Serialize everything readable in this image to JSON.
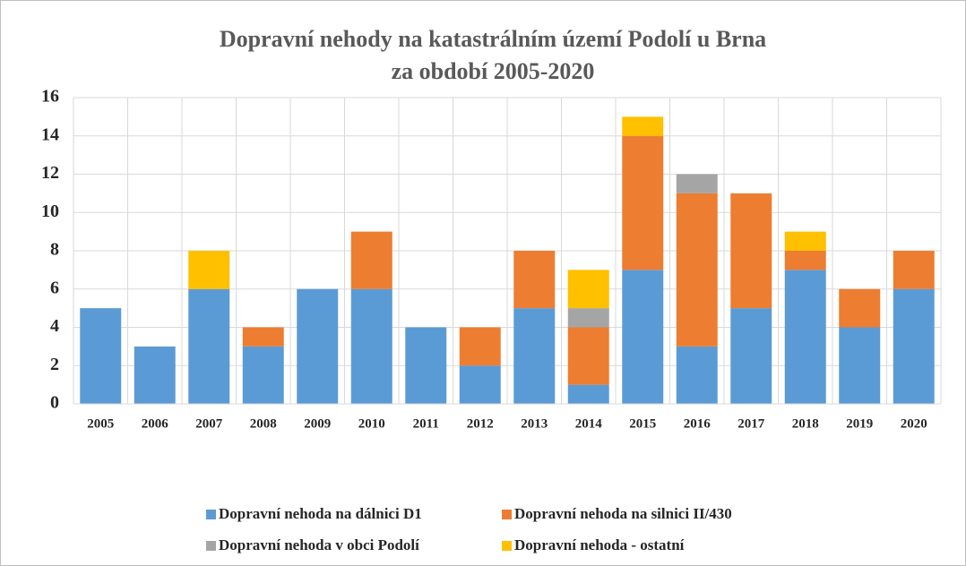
{
  "chart_data": {
    "type": "stacked_bar",
    "title": [
      "Dopravní nehody na katastrálním území Podolí u Brna",
      "za období 2005-2020"
    ],
    "categories": [
      "2005",
      "2006",
      "2007",
      "2008",
      "2009",
      "2010",
      "2011",
      "2012",
      "2013",
      "2014",
      "2015",
      "2016",
      "2017",
      "2018",
      "2019",
      "2020"
    ],
    "series": [
      {
        "name": "Dopravní nehoda na dálnici D1",
        "color": "#5b9bd5",
        "values": [
          5,
          3,
          6,
          3,
          6,
          6,
          4,
          2,
          5,
          1,
          7,
          3,
          5,
          7,
          4,
          6
        ]
      },
      {
        "name": "Dopravní nehoda na silnici II/430",
        "color": "#ed7d31",
        "values": [
          0,
          0,
          0,
          1,
          0,
          3,
          0,
          2,
          3,
          3,
          7,
          8,
          6,
          1,
          2,
          2
        ]
      },
      {
        "name": "Dopravní nehoda v obci Podolí",
        "color": "#a5a5a5",
        "values": [
          0,
          0,
          0,
          0,
          0,
          0,
          0,
          0,
          0,
          1,
          0,
          1,
          0,
          0,
          0,
          0
        ]
      },
      {
        "name": "Dopravní nehoda - ostatní",
        "color": "#ffc000",
        "values": [
          0,
          0,
          2,
          0,
          0,
          0,
          0,
          0,
          0,
          2,
          1,
          0,
          0,
          1,
          0,
          0
        ]
      }
    ],
    "ylim": [
      0,
      16
    ],
    "yticks": [
      0,
      2,
      4,
      6,
      8,
      10,
      12,
      14,
      16
    ],
    "grid": true,
    "legend": "bottom"
  }
}
